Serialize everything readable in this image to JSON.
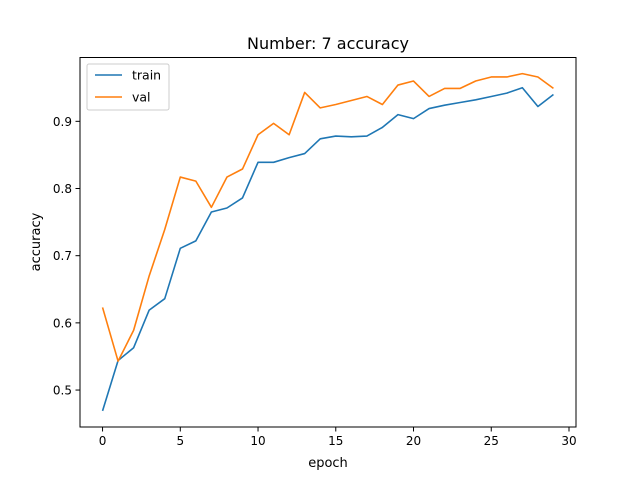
{
  "chart_data": {
    "type": "line",
    "title": "Number: 7 accuracy",
    "xlabel": "epoch",
    "ylabel": "accuracy",
    "xlim": [
      -1.45,
      30.45
    ],
    "ylim": [
      0.445,
      0.995
    ],
    "xticks": [
      0,
      5,
      10,
      15,
      20,
      25,
      30
    ],
    "yticks": [
      0.5,
      0.6,
      0.7,
      0.8,
      0.9
    ],
    "xtick_labels": [
      "0",
      "5",
      "10",
      "15",
      "20",
      "25",
      "30"
    ],
    "ytick_labels": [
      "0.5",
      "0.6",
      "0.7",
      "0.8",
      "0.9"
    ],
    "grid": false,
    "legend_position": "top-left",
    "x": [
      0,
      1,
      2,
      3,
      4,
      5,
      6,
      7,
      8,
      9,
      10,
      11,
      12,
      13,
      14,
      15,
      16,
      17,
      18,
      19,
      20,
      21,
      22,
      23,
      24,
      25,
      26,
      27,
      28,
      29
    ],
    "series": [
      {
        "name": "train",
        "color": "#1f77b4",
        "values": [
          0.469,
          0.544,
          0.563,
          0.619,
          0.636,
          0.711,
          0.722,
          0.765,
          0.771,
          0.786,
          0.839,
          0.839,
          0.846,
          0.852,
          0.874,
          0.878,
          0.877,
          0.878,
          0.891,
          0.91,
          0.904,
          0.919,
          0.924,
          0.928,
          0.932,
          0.937,
          0.942,
          0.95,
          0.922,
          0.94
        ]
      },
      {
        "name": "val",
        "color": "#ff7f0e",
        "values": [
          0.623,
          0.543,
          0.589,
          0.67,
          0.739,
          0.817,
          0.811,
          0.772,
          0.817,
          0.829,
          0.88,
          0.897,
          0.88,
          0.943,
          0.92,
          0.925,
          0.931,
          0.937,
          0.925,
          0.954,
          0.96,
          0.937,
          0.949,
          0.949,
          0.96,
          0.966,
          0.966,
          0.971,
          0.966,
          0.949
        ]
      }
    ]
  }
}
